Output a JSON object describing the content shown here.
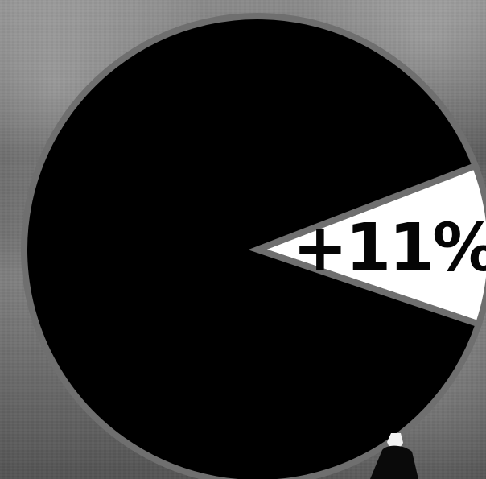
{
  "chart_data": {
    "type": "pie",
    "slices": [
      {
        "value": 11,
        "label": "+11%",
        "color": "#ffffff"
      },
      {
        "value": 89,
        "label": "",
        "color": "#000000"
      }
    ],
    "legend": "none",
    "grid": false
  }
}
